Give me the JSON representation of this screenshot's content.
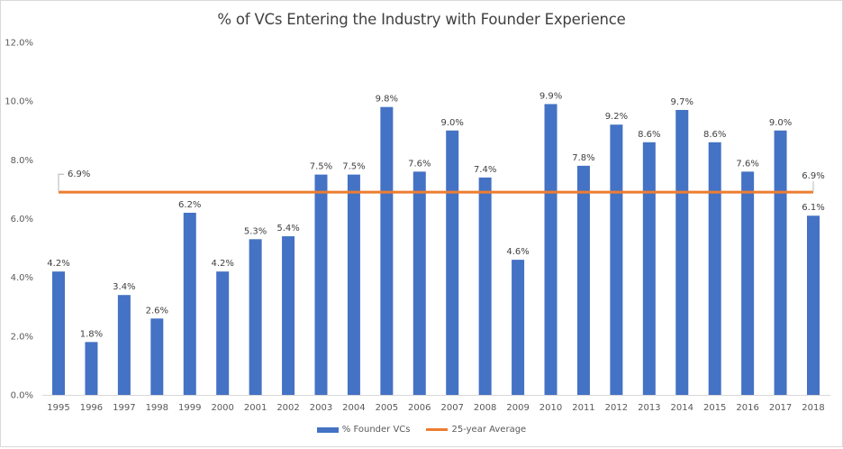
{
  "chart_data": {
    "type": "bar",
    "title": "% of VCs Entering the Industry with Founder Experience",
    "xlabel": "",
    "ylabel": "",
    "ylim": [
      0,
      12
    ],
    "yticks": [
      "0.0%",
      "2.0%",
      "4.0%",
      "6.0%",
      "8.0%",
      "10.0%",
      "12.0%"
    ],
    "ytick_values": [
      0,
      2,
      4,
      6,
      8,
      10,
      12
    ],
    "grid": false,
    "legend_position": "bottom",
    "categories": [
      "1995",
      "1996",
      "1997",
      "1998",
      "1999",
      "2000",
      "2001",
      "2002",
      "2003",
      "2004",
      "2005",
      "2006",
      "2007",
      "2008",
      "2009",
      "2010",
      "2011",
      "2012",
      "2013",
      "2014",
      "2015",
      "2016",
      "2017",
      "2018"
    ],
    "series": [
      {
        "name": "% Founder VCs",
        "type": "bar",
        "color": "#4472c4",
        "values": [
          4.2,
          1.8,
          3.4,
          2.6,
          6.2,
          4.2,
          5.3,
          5.4,
          7.5,
          7.5,
          9.8,
          7.6,
          9.0,
          7.4,
          4.6,
          9.9,
          7.8,
          9.2,
          8.6,
          9.7,
          8.6,
          7.6,
          9.0,
          6.1
        ],
        "labels": [
          "4.2%",
          "1.8%",
          "3.4%",
          "2.6%",
          "6.2%",
          "4.2%",
          "5.3%",
          "5.4%",
          "7.5%",
          "7.5%",
          "9.8%",
          "7.6%",
          "9.0%",
          "7.4%",
          "4.6%",
          "9.9%",
          "7.8%",
          "9.2%",
          "8.6%",
          "9.7%",
          "8.6%",
          "7.6%",
          "9.0%",
          "6.1%"
        ]
      },
      {
        "name": "25-year Average",
        "type": "line",
        "color": "#ed7d31",
        "value": 6.9,
        "labels": [
          "6.9%",
          "6.9%"
        ]
      }
    ]
  }
}
